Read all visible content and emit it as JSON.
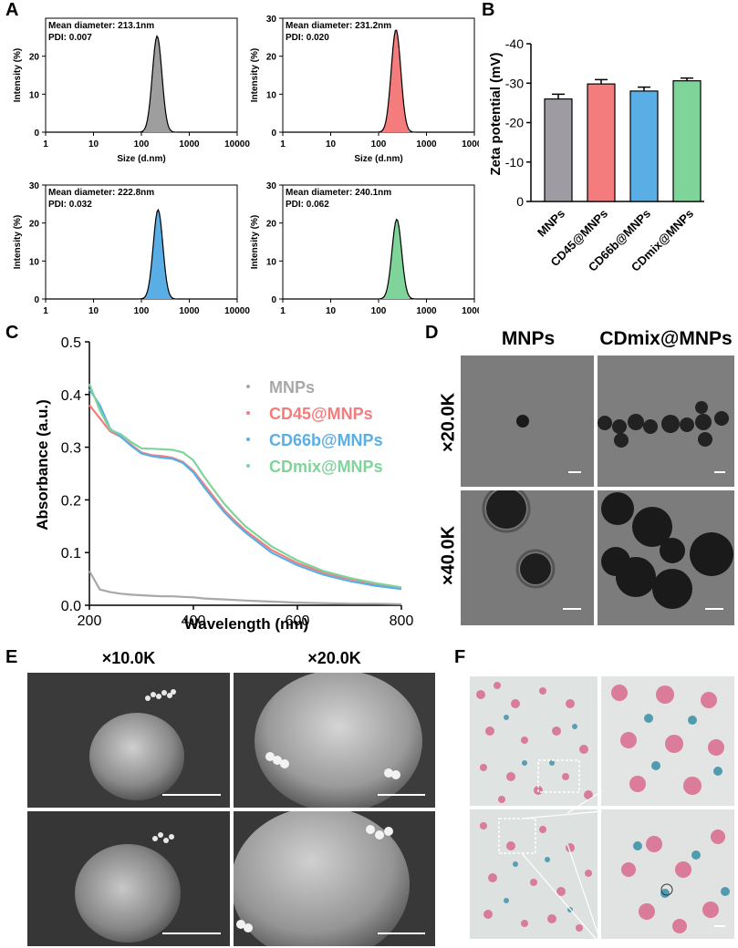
{
  "panels": {
    "a": "A",
    "b": "B",
    "c": "C",
    "d": "D",
    "e": "E",
    "f": "F"
  },
  "dls": {
    "xlabel": "Size (d.nm)",
    "ylabel": "Intensity (%)",
    "xticks": [
      "1",
      "10",
      "100",
      "1000",
      "10000"
    ],
    "colors": [
      "#9e9e9e",
      "#f47c7c",
      "#5aaee6",
      "#7fd49a"
    ],
    "plots": [
      {
        "diameter": "Mean diameter: 213.1nm",
        "pdi": "PDI: 0.007",
        "yticks": [
          "0",
          "10",
          "20"
        ],
        "ymax": 30,
        "peak_size": 213.1,
        "peak_intensity": 25.3
      },
      {
        "diameter": "Mean diameter: 231.2nm",
        "pdi": "PDI: 0.020",
        "yticks": [
          "0",
          "10",
          "20",
          "30"
        ],
        "ymax": 30,
        "peak_size": 231.2,
        "peak_intensity": 27
      },
      {
        "diameter": "Mean diameter: 222.8nm",
        "pdi": "PDI: 0.032",
        "yticks": [
          "0",
          "10",
          "20",
          "30"
        ],
        "ymax": 30,
        "peak_size": 222.8,
        "peak_intensity": 23.5
      },
      {
        "diameter": "Mean diameter: 240.1nm",
        "pdi": "PDI: 0.062",
        "yticks": [
          "0",
          "10",
          "20",
          "30"
        ],
        "ymax": 30,
        "peak_size": 240.1,
        "peak_intensity": 21
      }
    ]
  },
  "chart_data": [
    {
      "type": "bar",
      "ylabel": "Zeta potential (mV)",
      "categories": [
        "MNPs",
        "CD45@MNPs",
        "CD66b@MNPs",
        "CDmix@MNPs"
      ],
      "values": [
        -26,
        -29.8,
        -28,
        -30.6
      ],
      "errors": [
        1.2,
        1.1,
        1.0,
        0.7
      ],
      "colors": [
        "#9e9ca2",
        "#f47c7c",
        "#5aaee6",
        "#7fd49a"
      ],
      "ylim": [
        0,
        -40
      ],
      "yticks": [
        "0",
        "-10",
        "-20",
        "-30",
        "-40"
      ]
    },
    {
      "type": "line",
      "xlabel": "Wavelength (nm)",
      "ylabel": "Absorbance (a.u.)",
      "xlim": [
        200,
        800
      ],
      "ylim": [
        0,
        0.5
      ],
      "xticks": [
        "200",
        "400",
        "600",
        "800"
      ],
      "yticks": [
        "0.0",
        "0.1",
        "0.2",
        "0.3",
        "0.4",
        "0.5"
      ],
      "legend": "top-right",
      "x": [
        200,
        220,
        240,
        260,
        280,
        300,
        320,
        340,
        360,
        380,
        400,
        420,
        440,
        460,
        480,
        500,
        550,
        600,
        650,
        700,
        750,
        800
      ],
      "series": [
        {
          "name": "MNPs",
          "color": "#a8a8a8",
          "values": [
            0.065,
            0.03,
            0.025,
            0.022,
            0.02,
            0.019,
            0.018,
            0.017,
            0.017,
            0.016,
            0.015,
            0.013,
            0.012,
            0.011,
            0.01,
            0.009,
            0.007,
            0.005,
            0.004,
            0.003,
            0.003,
            0.002
          ]
        },
        {
          "name": "CD45@MNPs",
          "color": "#f47c7c",
          "values": [
            0.38,
            0.355,
            0.33,
            0.32,
            0.305,
            0.29,
            0.285,
            0.283,
            0.28,
            0.272,
            0.255,
            0.23,
            0.205,
            0.18,
            0.16,
            0.142,
            0.105,
            0.08,
            0.062,
            0.05,
            0.04,
            0.033
          ]
        },
        {
          "name": "CD66b@MNPs",
          "color": "#5aaee6",
          "values": [
            0.41,
            0.38,
            0.335,
            0.32,
            0.303,
            0.288,
            0.283,
            0.28,
            0.278,
            0.27,
            0.252,
            0.225,
            0.2,
            0.176,
            0.156,
            0.138,
            0.1,
            0.076,
            0.058,
            0.046,
            0.037,
            0.031
          ]
        },
        {
          "name": "CDmix@MNPs",
          "color": "#7fd49a",
          "values": [
            0.42,
            0.37,
            0.333,
            0.325,
            0.31,
            0.298,
            0.297,
            0.296,
            0.295,
            0.29,
            0.275,
            0.245,
            0.218,
            0.192,
            0.17,
            0.15,
            0.112,
            0.085,
            0.065,
            0.052,
            0.042,
            0.034
          ]
        }
      ]
    }
  ],
  "tem": {
    "col1": "MNPs",
    "col2": "CDmix@MNPs",
    "row1": "×20.0K",
    "row2": "×40.0K"
  },
  "sem": {
    "col1": "×10.0K",
    "col2": "×20.0K"
  }
}
